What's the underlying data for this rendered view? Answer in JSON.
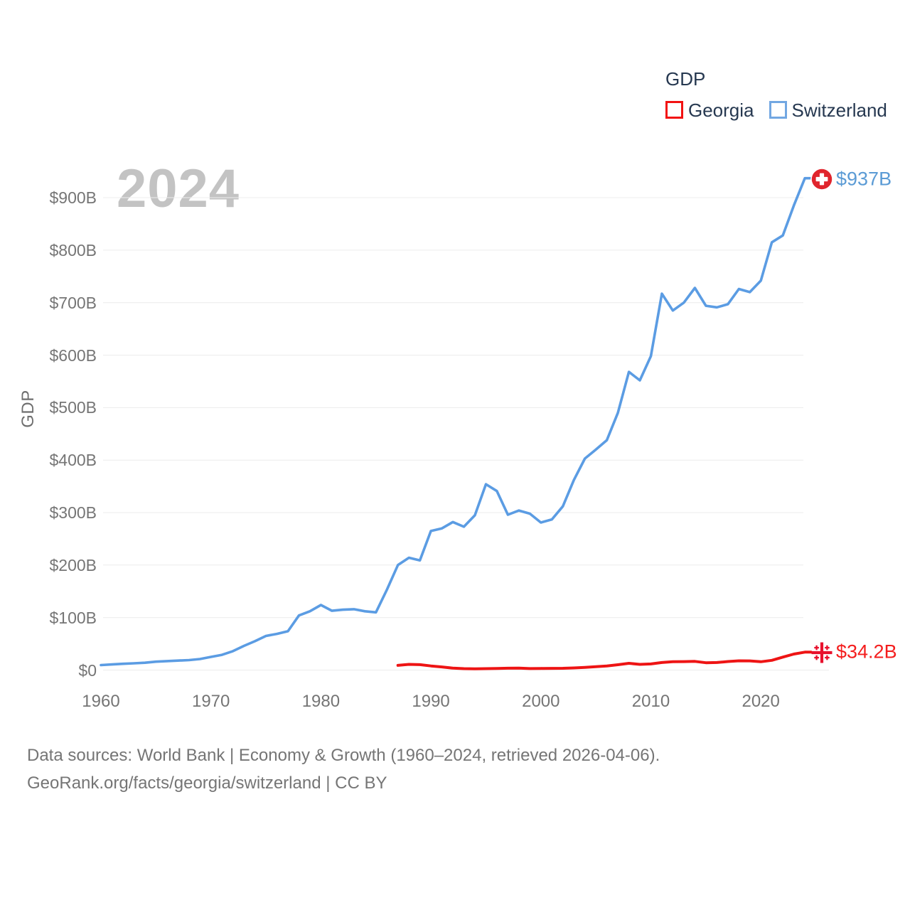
{
  "watermark": "2024",
  "legend": {
    "title": "GDP",
    "items": [
      {
        "label": "Georgia",
        "color": "#f21212"
      },
      {
        "label": "Switzerland",
        "color": "#72a7e2"
      }
    ]
  },
  "y_axis": {
    "title": "GDP",
    "tick_labels": [
      "$0",
      "$100B",
      "$200B",
      "$300B",
      "$400B",
      "$500B",
      "$600B",
      "$700B",
      "$800B",
      "$900B"
    ]
  },
  "x_axis": {
    "tick_labels": [
      "1960",
      "1970",
      "1980",
      "1990",
      "2000",
      "2010",
      "2020"
    ]
  },
  "end_labels": {
    "switzerland": {
      "text": "$937B",
      "color": "#5b9bd5"
    },
    "georgia": {
      "text": "$34.2B",
      "color": "#f41d1d"
    }
  },
  "flags": {
    "switzerland_red": "#e0252d",
    "georgia_red": "#e8112d"
  },
  "footer": {
    "line1": "Data sources: World Bank | Economy & Growth (1960–2024, retrieved 2026-04-06).",
    "line2": "GeoRank.org/facts/georgia/switzerland | CC BY"
  },
  "chart_data": {
    "type": "line",
    "title": "GDP",
    "ylabel": "GDP",
    "unit": "billion USD (current)",
    "grid": "horizontal",
    "grid_color": "#ececec",
    "legend_position": "top-right",
    "xlim": [
      1960,
      2024
    ],
    "ylim_billions": [
      0,
      960
    ],
    "x_ticks": [
      1960,
      1970,
      1980,
      1990,
      2000,
      2010,
      2020
    ],
    "y_ticks_billions": [
      0,
      100,
      200,
      300,
      400,
      500,
      600,
      700,
      800,
      900
    ],
    "series": [
      {
        "name": "Switzerland",
        "color": "#5b9ce3",
        "start_year": 1960,
        "end_year": 2024,
        "end_label": "$937B",
        "values": [
          9.5,
          10.7,
          11.9,
          12.9,
          14,
          16,
          17,
          18,
          19,
          21,
          25,
          29,
          36,
          46,
          55,
          65,
          69,
          74,
          104,
          112,
          124,
          113,
          115,
          116,
          112,
          110,
          153,
          200,
          214,
          209,
          265,
          270,
          282,
          273,
          295,
          354,
          341,
          296,
          304,
          298,
          281,
          287,
          312,
          362,
          403,
          420,
          438,
          490,
          568,
          552,
          598,
          717,
          685,
          700,
          728,
          694,
          691,
          697,
          726,
          720,
          742,
          815,
          828,
          885,
          937
        ]
      },
      {
        "name": "Georgia",
        "color": "#ee1414",
        "start_year": 1987,
        "end_year": 2024,
        "end_label": "$34.2B",
        "values": [
          9.0,
          10.8,
          10.3,
          7.8,
          6.0,
          3.7,
          2.7,
          2.5,
          2.7,
          3.1,
          3.5,
          3.6,
          2.8,
          3.1,
          3.2,
          3.4,
          4.0,
          5.1,
          6.4,
          7.8,
          10.2,
          12.8,
          10.8,
          11.6,
          14.4,
          15.8,
          16.1,
          16.5,
          14.0,
          14.4,
          16.2,
          17.6,
          17.5,
          15.8,
          18.6,
          24.6,
          30.5,
          34.2
        ]
      }
    ]
  }
}
